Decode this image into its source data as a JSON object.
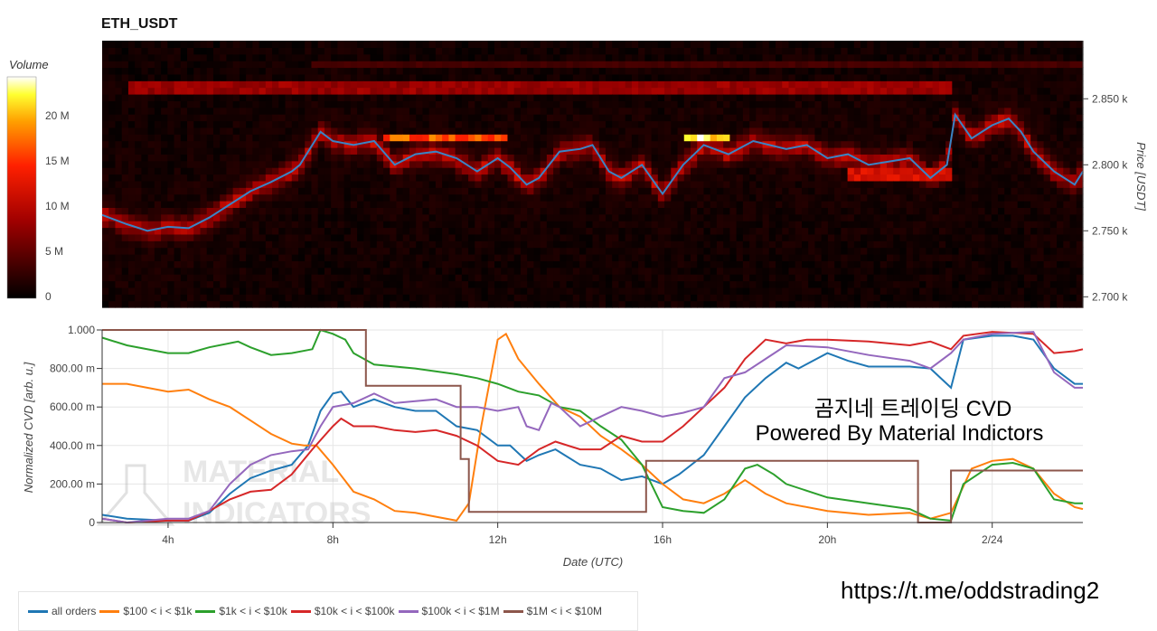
{
  "title": "ETH_USDT",
  "overlay": {
    "line1": "곰지네 트레이딩 CVD",
    "line2": "Powered By Material Indictors",
    "url": "https://t.me/oddstrading2"
  },
  "watermark": {
    "text": "MATERIAL INDICATORS"
  },
  "chart_data": [
    {
      "type": "heatmap",
      "title": "ETH_USDT",
      "ylabel": "Price [USDT]",
      "colorbar_label": "Volume",
      "colorbar_ticks": [
        "0",
        "5 M",
        "10 M",
        "15 M",
        "20 M"
      ],
      "colorbar_range": [
        0,
        24000000
      ],
      "yticks": [
        {
          "v": 2700,
          "label": "2.700 k"
        },
        {
          "v": 2750,
          "label": "2.750 k"
        },
        {
          "v": 2800,
          "label": "2.800 k"
        },
        {
          "v": 2850,
          "label": "2.850 k"
        }
      ],
      "ylim": [
        2692,
        2894
      ],
      "xlim": [
        2.4,
        26.2
      ],
      "walls": [
        {
          "price": 2877,
          "from": 7.5,
          "to": 26.2,
          "volume": 4000000
        },
        {
          "price": 2860,
          "from": 3.0,
          "to": 23.0,
          "volume": 9000000
        },
        {
          "price": 2820,
          "from": 9.3,
          "to": 12.3,
          "volume": 18000000
        },
        {
          "price": 2820,
          "from": 16.6,
          "to": 17.6,
          "volume": 24000000
        },
        {
          "price": 2793,
          "from": 20.5,
          "to": 23.0,
          "volume": 13000000
        }
      ],
      "price_line": {
        "color": "#3b84c4",
        "x": [
          2.4,
          3,
          3.5,
          4,
          4.5,
          5,
          5.5,
          6,
          6.5,
          7,
          7.2,
          7.7,
          8,
          8.5,
          9,
          9.5,
          10,
          10.5,
          11,
          11.5,
          12,
          12.3,
          12.7,
          13,
          13.5,
          14,
          14.3,
          14.7,
          15,
          15.5,
          16,
          16.5,
          17,
          17.6,
          18.2,
          19,
          19.5,
          20,
          20.5,
          21,
          22,
          22.5,
          22.9,
          23.1,
          23.5,
          24,
          24.4,
          24.7,
          25,
          25.5,
          26,
          26.2
        ],
        "y": [
          2762,
          2755,
          2750,
          2753,
          2752,
          2760,
          2770,
          2780,
          2787,
          2795,
          2800,
          2825,
          2818,
          2815,
          2818,
          2800,
          2808,
          2810,
          2805,
          2795,
          2805,
          2798,
          2785,
          2790,
          2810,
          2812,
          2815,
          2795,
          2790,
          2800,
          2778,
          2800,
          2815,
          2808,
          2818,
          2812,
          2815,
          2805,
          2808,
          2800,
          2805,
          2790,
          2800,
          2838,
          2820,
          2830,
          2835,
          2825,
          2810,
          2795,
          2785,
          2795
        ]
      }
    },
    {
      "type": "line",
      "xlabel": "Date (UTC)",
      "ylabel": "Normalized CVD [arb. u.]",
      "ylim": [
        0,
        1
      ],
      "xlim": [
        2.4,
        26.2
      ],
      "xticks": [
        {
          "v": 4,
          "label": "4h"
        },
        {
          "v": 8,
          "label": "8h"
        },
        {
          "v": 12,
          "label": "12h"
        },
        {
          "v": 16,
          "label": "16h"
        },
        {
          "v": 20,
          "label": "20h"
        },
        {
          "v": 24,
          "label": "2/24"
        }
      ],
      "yticks": [
        {
          "v": 0,
          "label": "0"
        },
        {
          "v": 0.2,
          "label": "200.00 m"
        },
        {
          "v": 0.4,
          "label": "400.00 m"
        },
        {
          "v": 0.6,
          "label": "600.00 m"
        },
        {
          "v": 0.8,
          "label": "800.00 m"
        },
        {
          "v": 1,
          "label": "1.000"
        }
      ],
      "grid": true,
      "legend": "bottom-left",
      "series": [
        {
          "name": "all orders",
          "color": "#1f77b4",
          "x": [
            2.4,
            3,
            4,
            4.5,
            5,
            5.5,
            6,
            6.5,
            7,
            7.4,
            7.7,
            8,
            8.2,
            8.5,
            9,
            9.5,
            10,
            10.5,
            11,
            11.5,
            12,
            12.3,
            12.7,
            13,
            13.4,
            14,
            14.5,
            15,
            15.5,
            16,
            16.4,
            17,
            17.5,
            18,
            18.5,
            19,
            19.3,
            20,
            20.5,
            21,
            22,
            22.5,
            23,
            23.3,
            24,
            24.5,
            25,
            25.5,
            26,
            26.2
          ],
          "y": [
            0.04,
            0.02,
            0.01,
            0.01,
            0.05,
            0.15,
            0.23,
            0.27,
            0.3,
            0.4,
            0.58,
            0.67,
            0.68,
            0.6,
            0.64,
            0.6,
            0.58,
            0.58,
            0.5,
            0.48,
            0.4,
            0.4,
            0.32,
            0.35,
            0.38,
            0.3,
            0.28,
            0.22,
            0.24,
            0.2,
            0.25,
            0.35,
            0.5,
            0.65,
            0.75,
            0.83,
            0.8,
            0.88,
            0.84,
            0.81,
            0.81,
            0.8,
            0.7,
            0.95,
            0.97,
            0.97,
            0.95,
            0.8,
            0.72,
            0.72
          ]
        },
        {
          "name": "$100 < i < $1k",
          "color": "#ff7f0e",
          "x": [
            2.4,
            3,
            4,
            4.5,
            5,
            5.5,
            6,
            6.5,
            7,
            7.3,
            7.6,
            8,
            8.5,
            9,
            9.5,
            10,
            10.5,
            11,
            11.3,
            11.6,
            12,
            12.2,
            12.5,
            13,
            13.5,
            14,
            14.5,
            15,
            15.5,
            16,
            16.5,
            17,
            17.5,
            18,
            18.5,
            19,
            20,
            21,
            22,
            22.5,
            23,
            23.5,
            24,
            24.5,
            25,
            25.5,
            26,
            26.2
          ],
          "y": [
            0.72,
            0.72,
            0.68,
            0.69,
            0.64,
            0.6,
            0.53,
            0.46,
            0.41,
            0.4,
            0.4,
            0.3,
            0.16,
            0.12,
            0.06,
            0.05,
            0.03,
            0.01,
            0.1,
            0.5,
            0.95,
            0.98,
            0.85,
            0.72,
            0.6,
            0.55,
            0.45,
            0.38,
            0.3,
            0.2,
            0.12,
            0.1,
            0.15,
            0.22,
            0.15,
            0.1,
            0.06,
            0.04,
            0.05,
            0.02,
            0.05,
            0.28,
            0.32,
            0.33,
            0.28,
            0.15,
            0.08,
            0.07
          ]
        },
        {
          "name": "$1k < i < $10k",
          "color": "#2ca02c",
          "x": [
            2.4,
            3,
            4,
            4.5,
            5,
            5.7,
            6,
            6.5,
            7,
            7.5,
            7.7,
            8,
            8.3,
            8.5,
            9,
            10,
            11,
            11.5,
            12,
            12.5,
            13,
            13.5,
            14,
            14.5,
            15,
            15.5,
            16,
            16.5,
            17,
            17.5,
            18,
            18.3,
            18.7,
            19,
            20,
            21,
            22,
            22.5,
            23,
            23.3,
            24,
            24.5,
            25,
            25.5,
            26,
            26.2
          ],
          "y": [
            0.96,
            0.92,
            0.88,
            0.88,
            0.91,
            0.94,
            0.91,
            0.87,
            0.88,
            0.9,
            1.0,
            0.98,
            0.95,
            0.88,
            0.82,
            0.8,
            0.77,
            0.75,
            0.72,
            0.68,
            0.66,
            0.6,
            0.58,
            0.5,
            0.43,
            0.3,
            0.08,
            0.06,
            0.05,
            0.12,
            0.28,
            0.3,
            0.25,
            0.2,
            0.13,
            0.1,
            0.07,
            0.02,
            0.01,
            0.2,
            0.3,
            0.31,
            0.28,
            0.12,
            0.1,
            0.1
          ]
        },
        {
          "name": "$10k < i < $100k",
          "color": "#d62728",
          "x": [
            2.4,
            3,
            4,
            4.5,
            5,
            5.5,
            6,
            6.5,
            7,
            7.5,
            8,
            8.2,
            8.5,
            9,
            9.5,
            10,
            10.5,
            11,
            11.5,
            12,
            12.5,
            13,
            13.4,
            14,
            14.5,
            15,
            15.5,
            16,
            16.5,
            17,
            17.5,
            18,
            18.5,
            19,
            19.5,
            20,
            21,
            22,
            22.5,
            23,
            23.3,
            24,
            25,
            25.5,
            26,
            26.2
          ],
          "y": [
            0.02,
            0.0,
            0.01,
            0.01,
            0.06,
            0.12,
            0.16,
            0.17,
            0.25,
            0.38,
            0.5,
            0.54,
            0.5,
            0.5,
            0.48,
            0.47,
            0.48,
            0.45,
            0.4,
            0.32,
            0.3,
            0.38,
            0.42,
            0.38,
            0.38,
            0.45,
            0.42,
            0.42,
            0.5,
            0.6,
            0.7,
            0.85,
            0.95,
            0.93,
            0.95,
            0.95,
            0.94,
            0.92,
            0.94,
            0.9,
            0.97,
            0.99,
            0.98,
            0.88,
            0.89,
            0.9
          ]
        },
        {
          "name": "$100k < i < $1M",
          "color": "#9467bd",
          "x": [
            2.4,
            3,
            4,
            4.5,
            5,
            5.5,
            6,
            6.5,
            7,
            7.4,
            7.7,
            8,
            8.5,
            9,
            9.5,
            10,
            10.5,
            11,
            11.5,
            12,
            12.5,
            12.7,
            13,
            13.3,
            13.5,
            14,
            14.5,
            15,
            15.5,
            16,
            16.5,
            17,
            17.5,
            18,
            18.5,
            19,
            20,
            21,
            22,
            22.5,
            23,
            23.3,
            24,
            25,
            25.5,
            26,
            26.2
          ],
          "y": [
            0.02,
            0.0,
            0.02,
            0.02,
            0.06,
            0.2,
            0.3,
            0.35,
            0.37,
            0.38,
            0.5,
            0.6,
            0.62,
            0.67,
            0.62,
            0.63,
            0.64,
            0.6,
            0.6,
            0.58,
            0.6,
            0.5,
            0.48,
            0.62,
            0.6,
            0.5,
            0.55,
            0.6,
            0.58,
            0.55,
            0.57,
            0.6,
            0.75,
            0.78,
            0.85,
            0.92,
            0.91,
            0.87,
            0.84,
            0.8,
            0.88,
            0.95,
            0.98,
            0.99,
            0.78,
            0.7,
            0.7
          ]
        },
        {
          "name": "$1M < i < $10M",
          "color": "#8c564b",
          "step": true,
          "x": [
            2.4,
            8.8,
            11.1,
            11.3,
            15.6,
            22.2,
            23.0,
            26.2
          ],
          "y": [
            1.0,
            0.71,
            0.33,
            0.055,
            0.32,
            0.0,
            0.27,
            0.27
          ]
        }
      ]
    }
  ]
}
